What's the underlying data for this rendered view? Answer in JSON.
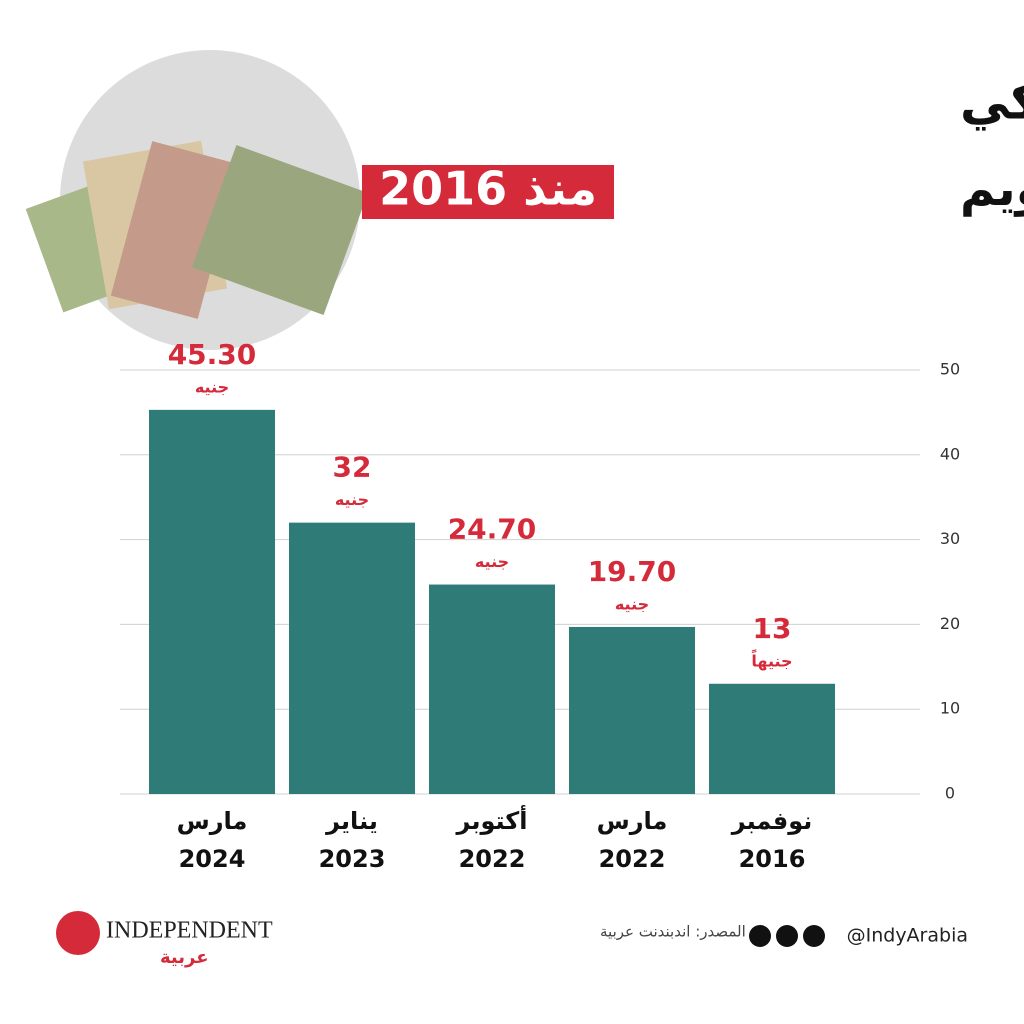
{
  "chart_data": {
    "type": "bar",
    "title": "سعر صرف الدولار الأميركي",
    "subtitle": "بعد كل تعويم",
    "subtitle_highlight": "منذ 2016",
    "categories": [
      [
        "نوفمبر",
        "2016"
      ],
      [
        "مارس",
        "2022"
      ],
      [
        "أكتوبر",
        "2022"
      ],
      [
        "يناير",
        "2023"
      ],
      [
        "مارس",
        "2024"
      ]
    ],
    "values": [
      13,
      19.7,
      24.7,
      32,
      45.3
    ],
    "value_labels": [
      "13",
      "19.70",
      "24.70",
      "32",
      "45.30"
    ],
    "value_units": [
      "جنيهاً",
      "جنيه",
      "جنيه",
      "جنيه",
      "جنيه"
    ],
    "color": "#2e7b78",
    "label_color": "#d42a3a",
    "ylim": [
      0,
      50
    ],
    "yticks": [
      0,
      10,
      20,
      30,
      40,
      50
    ],
    "grid": true,
    "source": "المصدر: اندبندنت عربية",
    "handle": "@IndyArabia",
    "logo": {
      "name": "INDEPENDENT",
      "arabic": "عربية"
    }
  }
}
